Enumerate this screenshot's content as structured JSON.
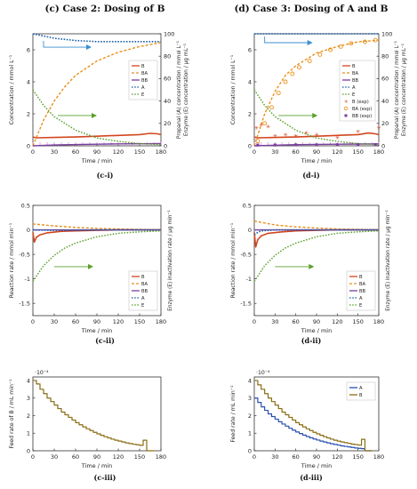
{
  "headers": {
    "left": "(c) Case 2: Dosing of B",
    "right": "(d) Case 3: Dosing of A and B"
  },
  "colors": {
    "B": "#d2461e",
    "BA": "#e8901a",
    "BB": "#7a3f9e",
    "A": "#1a5fa8",
    "E": "#5aa02c",
    "feedA": "#2a4fb0",
    "feedB": "#8a6d12",
    "axis": "#333333",
    "pinkTick": "#e090e0"
  },
  "chart_data": [
    {
      "id": "c-i",
      "caption": "(c-i)",
      "type": "line",
      "xlabel": "Time / min",
      "ylabel": "Concentration / mmol L⁻¹",
      "ylabel2": "Propanal (A) concentration / mmol L⁻¹",
      "ylabel2b": "Enzyme (E) concentration / µg mL⁻¹",
      "xlim": [
        0,
        180
      ],
      "ylim": [
        0,
        7
      ],
      "y2lim": [
        0,
        100
      ],
      "xticks": [
        "0",
        "30",
        "60",
        "90",
        "120",
        "150",
        "180"
      ],
      "yticks": [
        "0",
        "2",
        "4",
        "6"
      ],
      "y2ticks": [
        "0",
        "20",
        "40",
        "60",
        "80",
        "100"
      ],
      "legend": [
        "B",
        "BA",
        "BB",
        "A",
        "E"
      ],
      "series": [
        {
          "name": "B",
          "axis": "y",
          "x": [
            0,
            5,
            30,
            60,
            90,
            120,
            150,
            165,
            175,
            180
          ],
          "y": [
            0.55,
            0.5,
            0.52,
            0.55,
            0.6,
            0.65,
            0.7,
            0.78,
            0.75,
            0.7
          ]
        },
        {
          "name": "BA",
          "axis": "y",
          "x": [
            0,
            15,
            30,
            45,
            60,
            90,
            120,
            150,
            180
          ],
          "y": [
            0,
            1.6,
            2.8,
            3.7,
            4.4,
            5.3,
            5.85,
            6.2,
            6.45
          ]
        },
        {
          "name": "BB",
          "axis": "y",
          "x": [
            0,
            30,
            60,
            90,
            120,
            150,
            180
          ],
          "y": [
            0,
            0.05,
            0.08,
            0.1,
            0.12,
            0.13,
            0.14
          ]
        },
        {
          "name": "A",
          "axis": "y2",
          "x": [
            0,
            30,
            60,
            90,
            120,
            150,
            180
          ],
          "y": [
            100,
            96,
            94,
            93,
            93,
            93,
            93
          ]
        },
        {
          "name": "E",
          "axis": "y2",
          "x": [
            0,
            15,
            30,
            60,
            90,
            120,
            150,
            180
          ],
          "y": [
            50,
            36,
            26,
            14,
            7,
            4,
            2,
            1
          ]
        }
      ]
    },
    {
      "id": "d-i",
      "caption": "(d-i)",
      "type": "line",
      "xlabel": "Time / min",
      "ylabel": "Concentration / mmol L⁻¹",
      "ylabel2": "Propanal (A) concentration / mmol L⁻¹",
      "ylabel2b": "Enzyme (E) concentration / µg mL⁻¹",
      "xlim": [
        0,
        180
      ],
      "ylim": [
        0,
        7
      ],
      "y2lim": [
        0,
        100
      ],
      "xticks": [
        "0",
        "30",
        "60",
        "90",
        "120",
        "150",
        "180"
      ],
      "yticks": [
        "0",
        "2",
        "4",
        "6"
      ],
      "y2ticks": [
        "0",
        "20",
        "40",
        "60",
        "80",
        "100"
      ],
      "legend": [
        "B",
        "BA",
        "BB",
        "A",
        "E",
        "B (exp)",
        "BA (exp)",
        "BB (exp)"
      ],
      "series": [
        {
          "name": "B",
          "axis": "y",
          "x": [
            0,
            5,
            30,
            60,
            90,
            120,
            150,
            165,
            175,
            180
          ],
          "y": [
            0.55,
            0.5,
            0.52,
            0.55,
            0.6,
            0.65,
            0.7,
            0.8,
            0.75,
            0.7
          ]
        },
        {
          "name": "BA",
          "axis": "y",
          "x": [
            0,
            15,
            30,
            45,
            60,
            90,
            120,
            150,
            180
          ],
          "y": [
            0,
            2.0,
            3.4,
            4.4,
            5.0,
            5.8,
            6.2,
            6.5,
            6.6
          ]
        },
        {
          "name": "BB",
          "axis": "y",
          "x": [
            0,
            30,
            60,
            90,
            120,
            150,
            180
          ],
          "y": [
            0,
            0.04,
            0.07,
            0.09,
            0.1,
            0.11,
            0.12
          ]
        },
        {
          "name": "A",
          "axis": "y2",
          "x": [
            0,
            180
          ],
          "y": [
            100,
            100
          ]
        },
        {
          "name": "E",
          "axis": "y2",
          "x": [
            0,
            15,
            30,
            60,
            90,
            120,
            150,
            180
          ],
          "y": [
            50,
            36,
            26,
            14,
            7,
            4,
            2,
            1
          ]
        },
        {
          "name": "B (exp)",
          "axis": "y",
          "marker": "star",
          "x": [
            3,
            10,
            20,
            30,
            45,
            60,
            75,
            90,
            120,
            150,
            180
          ],
          "y": [
            1.1,
            1.3,
            1.2,
            0.6,
            0.7,
            0.6,
            0.8,
            0.7,
            0.5,
            0.9,
            1.1
          ]
        },
        {
          "name": "BA (exp)",
          "axis": "y",
          "marker": "circle",
          "x": [
            5,
            15,
            25,
            35,
            45,
            55,
            65,
            80,
            95,
            110,
            125,
            140,
            160,
            175
          ],
          "y": [
            0.3,
            1.4,
            2.4,
            3.3,
            4.0,
            4.5,
            4.9,
            5.3,
            5.7,
            6.0,
            6.2,
            6.4,
            6.5,
            6.6
          ]
        },
        {
          "name": "BB (exp)",
          "axis": "y",
          "marker": "square",
          "x": [
            5,
            30,
            60,
            90,
            120,
            150,
            175
          ],
          "y": [
            0.05,
            0.05,
            0.06,
            0.06,
            0.07,
            0.07,
            0.08
          ]
        }
      ]
    },
    {
      "id": "c-ii",
      "caption": "(c-ii)",
      "type": "line",
      "xlabel": "Time / min",
      "ylabel": "Reaction rate / mmol min⁻¹",
      "ylabel2": "Enzyme (E) inactivation rate / µg min⁻¹",
      "xlim": [
        0,
        180
      ],
      "ylim": [
        -1.75,
        0.5
      ],
      "xticks": [
        "0",
        "30",
        "60",
        "90",
        "120",
        "150",
        "180"
      ],
      "yticks": [
        "0.5",
        "0",
        "-0.5",
        "-1",
        "-1.5"
      ],
      "legend": [
        "B",
        "BA",
        "BB",
        "A",
        "E"
      ],
      "series": [
        {
          "name": "B",
          "x": [
            0,
            2,
            5,
            10,
            20,
            40,
            60,
            90,
            120,
            180
          ],
          "y": [
            -0.05,
            -0.25,
            -0.15,
            -0.1,
            -0.06,
            -0.03,
            -0.02,
            -0.01,
            0,
            0
          ]
        },
        {
          "name": "BA",
          "x": [
            0,
            15,
            30,
            60,
            90,
            120,
            150,
            180
          ],
          "y": [
            0.12,
            0.1,
            0.08,
            0.05,
            0.03,
            0.02,
            0.01,
            0.005
          ]
        },
        {
          "name": "BB",
          "x": [
            0,
            30,
            60,
            90,
            120,
            150,
            180
          ],
          "y": [
            0,
            0,
            0,
            0,
            0,
            0,
            0
          ]
        },
        {
          "name": "A",
          "x": [
            0,
            30,
            60,
            90,
            120,
            150,
            180
          ],
          "y": [
            0,
            -0.01,
            -0.01,
            0,
            0,
            0,
            0
          ]
        },
        {
          "name": "E",
          "x": [
            0,
            15,
            30,
            45,
            60,
            90,
            120,
            150,
            180
          ],
          "y": [
            -1.05,
            -0.73,
            -0.52,
            -0.37,
            -0.27,
            -0.14,
            -0.07,
            -0.04,
            -0.02
          ]
        }
      ]
    },
    {
      "id": "d-ii",
      "caption": "(d-ii)",
      "type": "line",
      "xlabel": "Time / min",
      "ylabel": "Reaction rate / mmol min⁻¹",
      "ylabel2": "Enzyme (E) inactivation rate / µg min⁻¹",
      "xlim": [
        0,
        180
      ],
      "ylim": [
        -1.75,
        0.5
      ],
      "xticks": [
        "0",
        "30",
        "60",
        "90",
        "120",
        "150",
        "180"
      ],
      "yticks": [
        "0.5",
        "0",
        "-0.5",
        "-1",
        "-1.5"
      ],
      "legend": [
        "B",
        "BA",
        "BB",
        "A",
        "E"
      ],
      "series": [
        {
          "name": "B",
          "x": [
            0,
            2,
            5,
            10,
            20,
            40,
            60,
            90,
            120,
            180
          ],
          "y": [
            -0.05,
            -0.35,
            -0.2,
            -0.12,
            -0.07,
            -0.04,
            -0.02,
            -0.01,
            0,
            0
          ]
        },
        {
          "name": "BA",
          "x": [
            0,
            15,
            30,
            60,
            90,
            120,
            150,
            180
          ],
          "y": [
            0.18,
            0.14,
            0.1,
            0.06,
            0.04,
            0.02,
            0.01,
            0.005
          ]
        },
        {
          "name": "BB",
          "x": [
            0,
            30,
            60,
            90,
            120,
            150,
            180
          ],
          "y": [
            0,
            0,
            0,
            0,
            0,
            0,
            0
          ]
        },
        {
          "name": "A",
          "x": [
            0,
            5,
            10,
            30,
            60,
            120,
            180
          ],
          "y": [
            -0.1,
            -0.05,
            -0.02,
            0,
            0,
            0,
            0
          ]
        },
        {
          "name": "E",
          "x": [
            0,
            15,
            30,
            45,
            60,
            90,
            120,
            150,
            180
          ],
          "y": [
            -1.05,
            -0.73,
            -0.52,
            -0.37,
            -0.27,
            -0.14,
            -0.07,
            -0.04,
            -0.02
          ]
        }
      ]
    },
    {
      "id": "c-iii",
      "caption": "(c-iii)",
      "type": "line",
      "step": true,
      "xlabel": "Time / min",
      "ylabel": "Feed rate of B / mL min⁻¹",
      "multiplier": "·10⁻⁴",
      "xlim": [
        0,
        180
      ],
      "ylim": [
        0,
        4.2
      ],
      "xticks": [
        "0",
        "30",
        "60",
        "90",
        "120",
        "150",
        "180"
      ],
      "yticks": [
        "0",
        "1",
        "2",
        "3",
        "4"
      ],
      "legend": [],
      "series": [
        {
          "name": "B",
          "x": [
            0,
            5,
            10,
            15,
            20,
            25,
            30,
            35,
            40,
            45,
            50,
            55,
            60,
            65,
            70,
            75,
            80,
            85,
            90,
            95,
            100,
            105,
            110,
            115,
            120,
            125,
            130,
            135,
            140,
            145,
            150,
            155,
            160,
            165
          ],
          "y": [
            4.0,
            3.8,
            3.5,
            3.25,
            3.0,
            2.8,
            2.6,
            2.4,
            2.2,
            2.05,
            1.9,
            1.75,
            1.6,
            1.48,
            1.36,
            1.25,
            1.15,
            1.05,
            0.96,
            0.88,
            0.8,
            0.73,
            0.66,
            0.6,
            0.55,
            0.5,
            0.45,
            0.41,
            0.37,
            0.34,
            0.31,
            0.6,
            0.0,
            0.0
          ]
        }
      ]
    },
    {
      "id": "d-iii",
      "caption": "(d-iii)",
      "type": "line",
      "step": true,
      "xlabel": "Time / min",
      "ylabel": "Feed rate / mL min⁻¹",
      "multiplier": "·10⁻⁴",
      "xlim": [
        0,
        180
      ],
      "ylim": [
        0,
        4.2
      ],
      "xticks": [
        "0",
        "30",
        "60",
        "90",
        "120",
        "150",
        "180"
      ],
      "yticks": [
        "0",
        "1",
        "2",
        "3",
        "4"
      ],
      "legend": [
        "A",
        "B"
      ],
      "series": [
        {
          "name": "A",
          "x": [
            0,
            5,
            10,
            15,
            20,
            25,
            30,
            35,
            40,
            45,
            50,
            55,
            60,
            65,
            70,
            75,
            80,
            85,
            90,
            95,
            100,
            105,
            110,
            115,
            120,
            125,
            130,
            135,
            140,
            145,
            150,
            155,
            160,
            165
          ],
          "y": [
            3.0,
            2.75,
            2.5,
            2.3,
            2.1,
            1.95,
            1.8,
            1.65,
            1.52,
            1.4,
            1.28,
            1.17,
            1.07,
            0.98,
            0.89,
            0.81,
            0.74,
            0.67,
            0.61,
            0.55,
            0.5,
            0.45,
            0.4,
            0.36,
            0.32,
            0.28,
            0.25,
            0.22,
            0.19,
            0.16,
            0.14,
            0.12,
            0.0,
            0.0
          ]
        },
        {
          "name": "B",
          "x": [
            0,
            5,
            10,
            15,
            20,
            25,
            30,
            35,
            40,
            45,
            50,
            55,
            60,
            65,
            70,
            75,
            80,
            85,
            90,
            95,
            100,
            105,
            110,
            115,
            120,
            125,
            130,
            135,
            140,
            145,
            150,
            155,
            160,
            165
          ],
          "y": [
            4.0,
            3.75,
            3.5,
            3.25,
            3.0,
            2.8,
            2.6,
            2.4,
            2.2,
            2.05,
            1.9,
            1.75,
            1.6,
            1.48,
            1.36,
            1.25,
            1.15,
            1.05,
            0.96,
            0.88,
            0.8,
            0.73,
            0.66,
            0.6,
            0.55,
            0.5,
            0.46,
            0.42,
            0.38,
            0.35,
            0.32,
            0.65,
            0.0,
            0.0
          ]
        }
      ]
    }
  ]
}
